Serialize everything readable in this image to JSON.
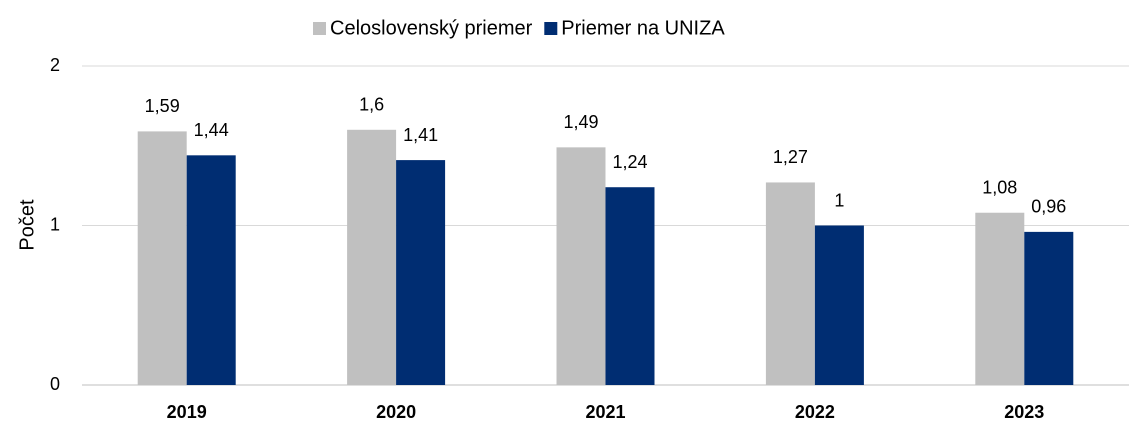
{
  "chart_data": {
    "type": "bar",
    "ylabel": "Počet",
    "categories": [
      "2019",
      "2020",
      "2021",
      "2022",
      "2023"
    ],
    "series": [
      {
        "name": "Celoslovenský priemer",
        "color": "#c0c0c0",
        "values": [
          1.59,
          1.6,
          1.49,
          1.27,
          1.08
        ],
        "value_labels": [
          "1,59",
          "1,6",
          "1,49",
          "1,27",
          "1,08"
        ]
      },
      {
        "name": "Priemer na UNIZA",
        "color": "#002d72",
        "values": [
          1.44,
          1.41,
          1.24,
          1,
          0.96
        ],
        "value_labels": [
          "1,44",
          "1,41",
          "1,24",
          "1",
          "0,96"
        ]
      }
    ],
    "ylim": [
      0,
      2
    ],
    "yticks": [
      0,
      1,
      2
    ],
    "grid": true,
    "legend": "top"
  }
}
